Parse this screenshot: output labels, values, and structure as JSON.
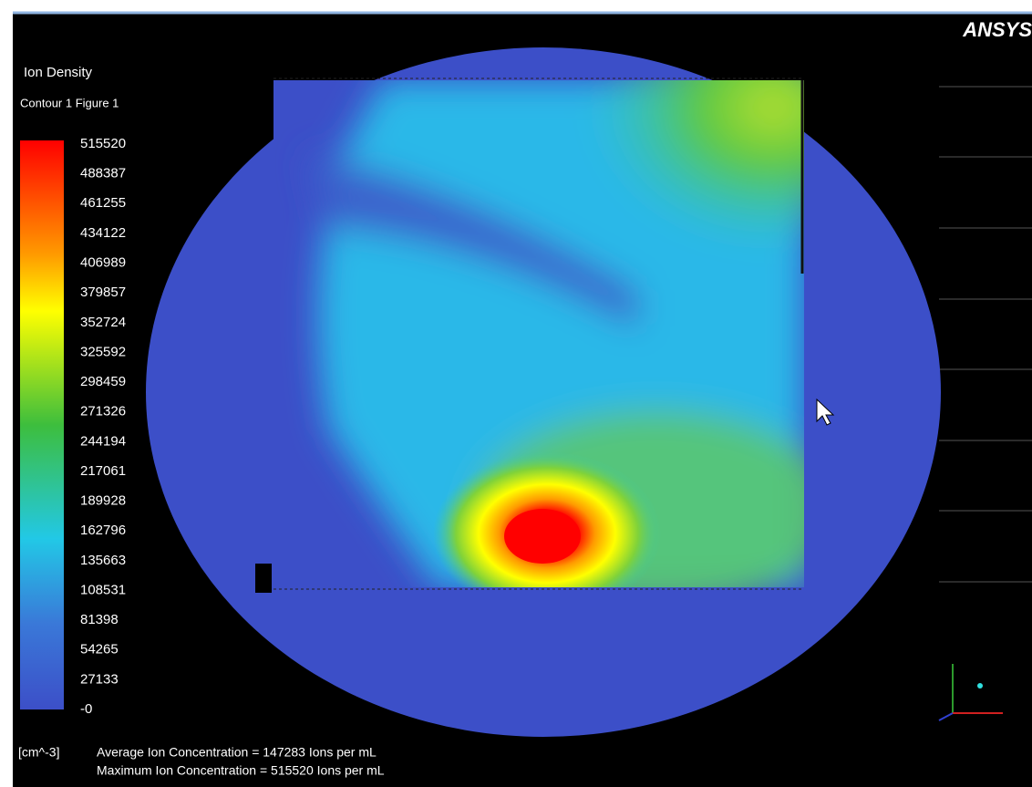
{
  "header": {
    "logo": "ANSYS",
    "title": "Ion Density",
    "subtitle": "Contour 1 Figure 1"
  },
  "legend": {
    "labels": [
      "515520",
      "488387",
      "461255",
      "434122",
      "406989",
      "379857",
      "352724",
      "325592",
      "298459",
      "271326",
      "244194",
      "217061",
      "189928",
      "162796",
      "135663",
      "108531",
      "81398",
      "54265",
      "27133",
      "-0"
    ]
  },
  "footer": {
    "unit": "[cm^-3]",
    "lines": [
      "Average Ion Concentration = 147283 Ions per mL",
      "Maximum Ion Concentration = 515520 Ions per mL"
    ]
  }
}
